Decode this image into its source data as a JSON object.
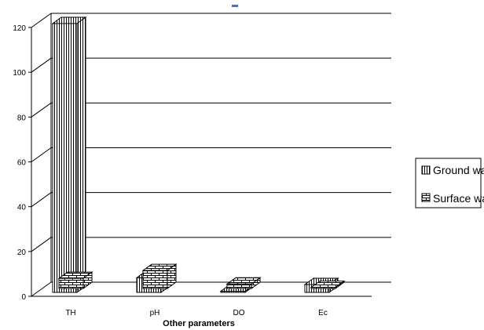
{
  "chart_data": {
    "type": "bar",
    "title": "",
    "xlabel": "Other parameters",
    "ylabel": "",
    "categories": [
      "TH",
      "pH",
      "DO",
      "Ec"
    ],
    "series": [
      {
        "name": "Ground water",
        "values": [
          120,
          6.5,
          0.5,
          3.5
        ]
      },
      {
        "name": "Surface water",
        "values": [
          4.5,
          8,
          2,
          0.5
        ]
      }
    ],
    "ylim": [
      0,
      120
    ],
    "yticks": [
      "0",
      "20",
      "40",
      "60",
      "80",
      "100",
      "120"
    ],
    "grid": true,
    "three_d": true,
    "legend_position": "right",
    "colors": {
      "ground": "#000000",
      "surface": "#000000",
      "grid": "#000000",
      "background": "#ffffff"
    }
  }
}
